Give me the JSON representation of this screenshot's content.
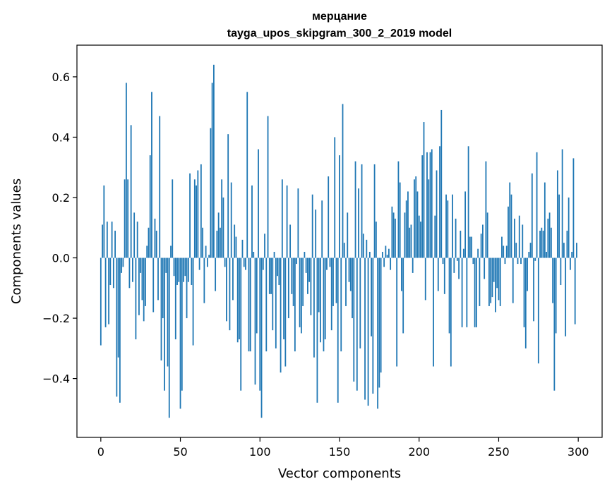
{
  "chart_data": {
    "type": "bar",
    "title_lines": [
      "мерцание",
      "tayga_upos_skipgram_300_2_2019 model"
    ],
    "xlabel": "Vector components",
    "ylabel": "Components values",
    "xlim": [
      -15,
      315
    ],
    "ylim": [
      -0.595,
      0.705
    ],
    "xticks": [
      0,
      50,
      100,
      150,
      200,
      250,
      300
    ],
    "xtick_labels": [
      "0",
      "50",
      "100",
      "150",
      "200",
      "250",
      "300"
    ],
    "yticks": [
      -0.4,
      -0.2,
      0.0,
      0.2,
      0.4,
      0.6
    ],
    "ytick_labels": [
      "−0.4",
      "−0.2",
      "0.0",
      "0.2",
      "0.4",
      "0.6"
    ],
    "grid": false,
    "bar_color": "#1f77b4",
    "values": [
      -0.29,
      0.11,
      0.24,
      -0.23,
      0.12,
      -0.22,
      -0.09,
      0.12,
      -0.1,
      0.09,
      -0.46,
      -0.33,
      -0.48,
      -0.05,
      -0.03,
      0.26,
      0.58,
      0.26,
      -0.1,
      0.44,
      -0.08,
      0.15,
      -0.27,
      0.12,
      -0.19,
      -0.05,
      -0.14,
      -0.21,
      -0.16,
      0.04,
      0.1,
      0.34,
      0.55,
      -0.18,
      0.13,
      0.09,
      -0.14,
      0.47,
      -0.34,
      -0.2,
      -0.44,
      -0.05,
      -0.36,
      -0.53,
      0.04,
      0.26,
      -0.06,
      -0.27,
      -0.09,
      -0.08,
      -0.5,
      -0.44,
      -0.08,
      -0.06,
      -0.2,
      -0.08,
      0.28,
      -0.09,
      -0.29,
      0.26,
      0.24,
      0.29,
      -0.04,
      0.31,
      0.1,
      -0.15,
      0.04,
      -0.03,
      0.01,
      0.43,
      0.58,
      0.64,
      -0.11,
      0.09,
      0.15,
      0.1,
      0.26,
      0.2,
      -0.03,
      -0.21,
      0.41,
      -0.24,
      0.25,
      -0.14,
      0.11,
      0.07,
      -0.28,
      -0.27,
      -0.44,
      0.06,
      -0.03,
      -0.04,
      0.55,
      -0.31,
      -0.31,
      0.24,
      0.02,
      -0.42,
      -0.25,
      0.36,
      -0.44,
      -0.53,
      -0.04,
      0.08,
      -0.31,
      0.47,
      -0.12,
      -0.12,
      -0.24,
      0.02,
      -0.3,
      -0.06,
      -0.09,
      -0.38,
      0.26,
      -0.27,
      -0.36,
      0.24,
      -0.2,
      0.11,
      -0.12,
      -0.16,
      -0.31,
      -0.02,
      0.23,
      -0.23,
      -0.25,
      -0.16,
      0.02,
      -0.05,
      -0.12,
      -0.08,
      -0.19,
      0.21,
      -0.33,
      0.16,
      -0.48,
      -0.18,
      -0.28,
      0.19,
      -0.31,
      -0.27,
      -0.04,
      0.27,
      -0.03,
      -0.24,
      -0.16,
      0.4,
      -0.15,
      -0.48,
      0.34,
      -0.31,
      0.51,
      0.05,
      -0.16,
      0.15,
      -0.08,
      -0.11,
      -0.2,
      -0.41,
      0.32,
      -0.44,
      0.23,
      -0.3,
      0.31,
      0.08,
      -0.47,
      0.06,
      -0.49,
      0.02,
      -0.26,
      -0.45,
      0.31,
      0.12,
      -0.5,
      -0.43,
      -0.38,
      0.02,
      -0.03,
      0.04,
      0.01,
      0.03,
      -0.04,
      0.17,
      0.15,
      0.13,
      -0.36,
      0.32,
      0.25,
      -0.11,
      -0.25,
      0.15,
      0.19,
      0.22,
      0.1,
      0.11,
      -0.05,
      0.26,
      0.27,
      0.22,
      0.14,
      0.12,
      0.34,
      0.45,
      -0.14,
      0.35,
      0.26,
      0.35,
      0.36,
      -0.36,
      0.14,
      0.29,
      -0.11,
      0.37,
      0.49,
      -0.02,
      -0.12,
      0.21,
      0.19,
      -0.25,
      -0.36,
      0.21,
      -0.05,
      0.13,
      -0.01,
      -0.07,
      0.09,
      -0.23,
      0.03,
      0.22,
      -0.23,
      0.37,
      0.07,
      0.07,
      -0.02,
      -0.23,
      -0.23,
      0.03,
      -0.16,
      0.08,
      0.11,
      -0.07,
      0.32,
      0.15,
      -0.16,
      -0.15,
      -0.13,
      -0.08,
      -0.18,
      -0.1,
      -0.14,
      -0.16,
      0.07,
      0.04,
      -0.02,
      0.04,
      0.17,
      0.25,
      0.21,
      -0.15,
      0.13,
      0.05,
      -0.02,
      0.14,
      -0.02,
      0.11,
      -0.23,
      -0.3,
      -0.11,
      0.02,
      0.05,
      0.28,
      -0.21,
      -0.01,
      0.35,
      -0.35,
      0.09,
      0.1,
      0.09,
      0.25,
      0.02,
      0.13,
      0.15,
      0.1,
      -0.15,
      -0.44,
      -0.25,
      0.29,
      0.21,
      -0.09,
      0.36,
      0.05,
      -0.26,
      0.09,
      0.2,
      -0.04,
      0.02,
      0.33,
      -0.22,
      0.05
    ]
  }
}
